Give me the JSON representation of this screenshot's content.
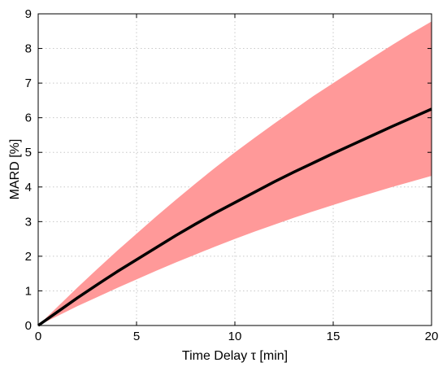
{
  "chart_data": {
    "type": "area",
    "xlabel": "Time Delay τ [min]",
    "ylabel": "MARD [%]",
    "xlim": [
      0,
      20
    ],
    "ylim": [
      0,
      9
    ],
    "x_ticks": [
      0,
      5,
      10,
      15,
      20
    ],
    "y_ticks": [
      0,
      1,
      2,
      3,
      4,
      5,
      6,
      7,
      8,
      9
    ],
    "grid": true,
    "colors": {
      "mean_line": "#000000",
      "band_fill": "#ff9999"
    },
    "x": [
      0,
      1,
      2,
      3,
      4,
      5,
      6,
      7,
      8,
      9,
      10,
      11,
      12,
      13,
      14,
      15,
      16,
      17,
      18,
      19,
      20
    ],
    "mean": [
      0,
      0.4,
      0.8,
      1.18,
      1.55,
      1.9,
      2.25,
      2.6,
      2.93,
      3.25,
      3.55,
      3.85,
      4.15,
      4.43,
      4.7,
      4.97,
      5.23,
      5.49,
      5.75,
      6.0,
      6.25
    ],
    "lower": [
      0,
      0.28,
      0.56,
      0.82,
      1.08,
      1.33,
      1.58,
      1.82,
      2.05,
      2.28,
      2.5,
      2.71,
      2.91,
      3.11,
      3.3,
      3.48,
      3.66,
      3.83,
      4.0,
      4.16,
      4.32
    ],
    "upper": [
      0,
      0.55,
      1.1,
      1.63,
      2.15,
      2.65,
      3.15,
      3.63,
      4.1,
      4.56,
      5.0,
      5.42,
      5.83,
      6.23,
      6.63,
      7.0,
      7.37,
      7.74,
      8.1,
      8.45,
      8.78
    ]
  }
}
